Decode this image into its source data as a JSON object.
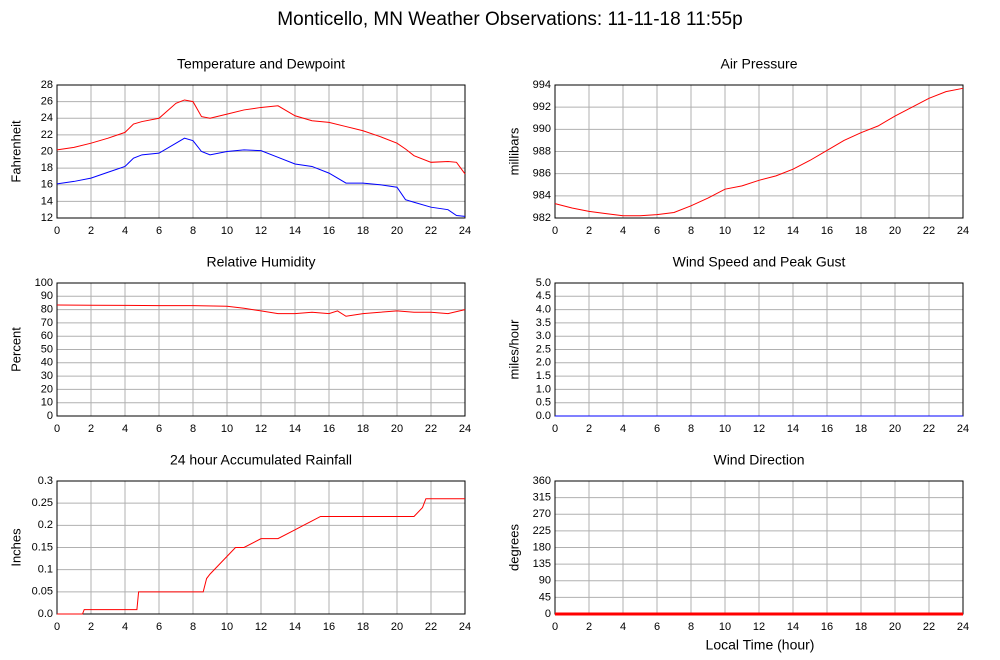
{
  "title": "Monticello, MN Weather Observations: 11-11-18 11:55p",
  "xlabel": "Local Time (hour)",
  "chart_data": [
    {
      "type": "line",
      "title": "Temperature and Dewpoint",
      "ylabel": "Fahrenheit",
      "x": [
        0,
        1,
        2,
        3,
        4,
        4.5,
        5,
        6,
        7,
        7.5,
        8,
        8.5,
        9,
        10,
        11,
        12,
        13,
        14,
        15,
        16,
        17,
        18,
        19,
        20,
        20.5,
        21,
        22,
        23,
        23.5,
        24
      ],
      "series": [
        {
          "color": "#ff0000",
          "values": [
            20.2,
            20.5,
            21,
            21.6,
            22.3,
            23.3,
            23.6,
            24,
            25.8,
            26.2,
            26,
            24.2,
            24,
            24.5,
            25,
            25.3,
            25.5,
            24.3,
            23.7,
            23.5,
            23,
            22.5,
            21.8,
            21,
            20.3,
            19.5,
            18.7,
            18.8,
            18.7,
            17.3
          ]
        },
        {
          "color": "#0000ff",
          "values": [
            16.1,
            16.4,
            16.8,
            17.5,
            18.2,
            19.2,
            19.6,
            19.8,
            21,
            21.6,
            21.3,
            20,
            19.6,
            20,
            20.2,
            20.1,
            19.3,
            18.5,
            18.2,
            17.4,
            16.2,
            16.2,
            16,
            15.7,
            14.2,
            13.9,
            13.3,
            13,
            12.3,
            12.2
          ]
        }
      ],
      "xlim": [
        0,
        24
      ],
      "xticks": [
        0,
        2,
        4,
        6,
        8,
        10,
        12,
        14,
        16,
        18,
        20,
        22,
        24
      ],
      "ylim": [
        12,
        28
      ],
      "yticks": [
        12,
        14,
        16,
        18,
        20,
        22,
        24,
        26,
        28
      ],
      "grid": true
    },
    {
      "type": "line",
      "title": "Air Pressure",
      "ylabel": "millibars",
      "x": [
        0,
        1,
        2,
        3,
        4,
        5,
        6,
        7,
        8,
        9,
        10,
        11,
        12,
        13,
        14,
        15,
        16,
        17,
        18,
        19,
        20,
        21,
        22,
        23,
        24
      ],
      "series": [
        {
          "color": "#ff0000",
          "values": [
            983.3,
            982.9,
            982.6,
            982.4,
            982.2,
            982.2,
            982.3,
            982.5,
            983.1,
            983.8,
            984.6,
            984.9,
            985.4,
            985.8,
            986.4,
            987.2,
            988.1,
            989,
            989.7,
            990.3,
            991.2,
            992,
            992.8,
            993.4,
            993.7
          ]
        }
      ],
      "xlim": [
        0,
        24
      ],
      "xticks": [
        0,
        2,
        4,
        6,
        8,
        10,
        12,
        14,
        16,
        18,
        20,
        22,
        24
      ],
      "ylim": [
        982,
        994
      ],
      "yticks": [
        982,
        984,
        986,
        988,
        990,
        992,
        994
      ],
      "grid": true
    },
    {
      "type": "line",
      "title": "Relative Humidity",
      "ylabel": "Percent",
      "x": [
        0,
        2,
        4,
        6,
        8,
        10,
        11,
        12,
        13,
        14,
        15,
        16,
        16.5,
        17,
        18,
        19,
        20,
        21,
        22,
        23,
        24
      ],
      "series": [
        {
          "color": "#ff0000",
          "values": [
            83.5,
            83.3,
            83.2,
            83,
            83,
            82.5,
            81,
            79,
            77,
            77,
            78,
            77,
            79,
            75,
            77,
            78,
            79,
            78,
            78,
            77,
            80
          ]
        }
      ],
      "xlim": [
        0,
        24
      ],
      "xticks": [
        0,
        2,
        4,
        6,
        8,
        10,
        12,
        14,
        16,
        18,
        20,
        22,
        24
      ],
      "ylim": [
        0,
        100
      ],
      "yticks": [
        0,
        10,
        20,
        30,
        40,
        50,
        60,
        70,
        80,
        90,
        100
      ],
      "grid": true
    },
    {
      "type": "line",
      "title": "Wind Speed and Peak Gust",
      "ylabel": "miles/hour",
      "x": [
        0,
        24
      ],
      "series": [
        {
          "color": "#ff0000",
          "values": [
            0,
            0
          ]
        },
        {
          "color": "#0000ff",
          "values": [
            0,
            0
          ]
        }
      ],
      "xlim": [
        0,
        24
      ],
      "xticks": [
        0,
        2,
        4,
        6,
        8,
        10,
        12,
        14,
        16,
        18,
        20,
        22,
        24
      ],
      "ylim": [
        0,
        5
      ],
      "yticks": [
        {
          "value": 0,
          "label": "0.0"
        },
        0.5,
        {
          "value": 1,
          "label": "1.0"
        },
        1.5,
        {
          "value": 2,
          "label": "2.0"
        },
        2.5,
        {
          "value": 3,
          "label": "3.0"
        },
        3.5,
        {
          "value": 4,
          "label": "4.0"
        },
        4.5,
        {
          "value": 5,
          "label": "5.0"
        }
      ],
      "grid": true
    },
    {
      "type": "line",
      "title": "24 hour Accumulated Rainfall",
      "ylabel": "Inches",
      "x": [
        0,
        1.5,
        1.6,
        4.7,
        4.8,
        8.6,
        8.8,
        9,
        9.5,
        10,
        10.5,
        11,
        12,
        13,
        14,
        14.5,
        15,
        15.5,
        16,
        21,
        21.5,
        21.7,
        24
      ],
      "series": [
        {
          "color": "#ff0000",
          "values": [
            0,
            0,
            0.01,
            0.01,
            0.05,
            0.05,
            0.08,
            0.09,
            0.11,
            0.13,
            0.15,
            0.15,
            0.17,
            0.17,
            0.19,
            0.2,
            0.21,
            0.22,
            0.22,
            0.22,
            0.24,
            0.26,
            0.26
          ]
        }
      ],
      "xlim": [
        0,
        24
      ],
      "xticks": [
        0,
        2,
        4,
        6,
        8,
        10,
        12,
        14,
        16,
        18,
        20,
        22,
        24
      ],
      "ylim": [
        0,
        0.3
      ],
      "yticks": [
        {
          "value": 0,
          "label": "0.0"
        },
        0.05,
        0.1,
        0.15,
        0.2,
        0.25,
        0.3
      ],
      "grid": true
    },
    {
      "type": "line",
      "title": "Wind Direction",
      "ylabel": "degrees",
      "x": [
        0,
        24
      ],
      "series": [
        {
          "color": "#ff0000",
          "values": [
            0,
            0
          ]
        }
      ],
      "xlim": [
        0,
        24
      ],
      "xticks": [
        0,
        2,
        4,
        6,
        8,
        10,
        12,
        14,
        16,
        18,
        20,
        22,
        24
      ],
      "ylim": [
        0,
        360
      ],
      "yticks": [
        0,
        45,
        90,
        135,
        180,
        225,
        270,
        315,
        360
      ],
      "grid": true
    }
  ]
}
